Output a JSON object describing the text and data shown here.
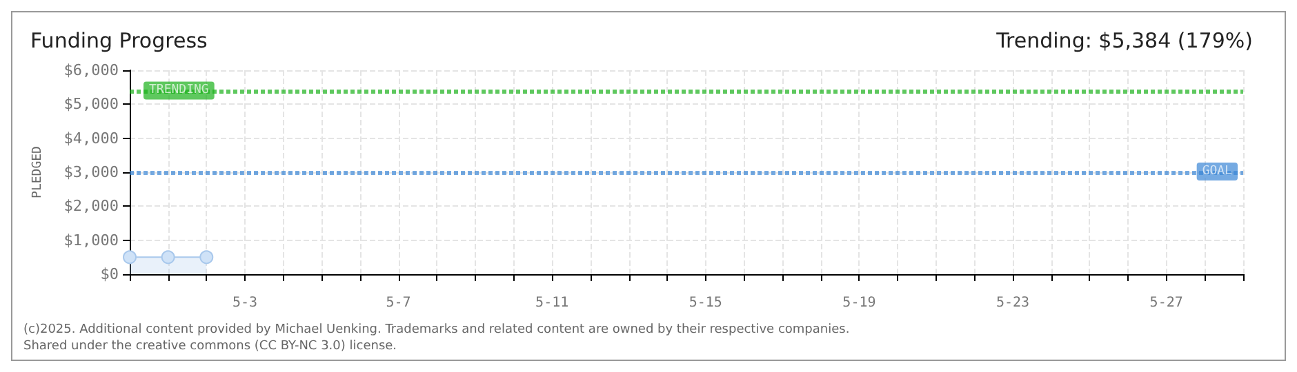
{
  "chart_data": {
    "type": "area",
    "title": "Funding Progress",
    "subtitle": "Trending: $5,384 (179%)",
    "ylabel": "PLEDGED",
    "categories": [
      null,
      null,
      null,
      "5-3",
      null,
      null,
      null,
      "5-7",
      null,
      null,
      null,
      "5-11",
      null,
      null,
      null,
      "5-15",
      null,
      null,
      null,
      "5-19",
      null,
      null,
      null,
      "5-23",
      null,
      null,
      null,
      "5-27",
      null,
      null
    ],
    "series": [
      {
        "color": "#a8c8ec",
        "values": [
          500,
          500,
          500,
          null,
          null,
          null,
          null,
          null,
          null,
          null,
          null,
          null,
          null,
          null,
          null,
          null,
          null,
          null,
          null,
          null,
          null,
          null,
          null,
          null,
          null,
          null,
          null,
          null,
          null,
          null
        ]
      }
    ],
    "marker": "circle",
    "grid": true,
    "ylim": [
      0,
      6000
    ],
    "yticks": [
      {
        "value": 0,
        "label": "$0"
      },
      {
        "value": 1000,
        "label": "$1,000"
      },
      {
        "value": 2000,
        "label": "$2,000"
      },
      {
        "value": 3000,
        "label": "$3,000"
      },
      {
        "value": 4000,
        "label": "$4,000"
      },
      {
        "value": 5000,
        "label": "$5,000"
      },
      {
        "value": 6000,
        "label": "$6,000"
      }
    ],
    "ref_lines": [
      {
        "axis": "y",
        "value": 5384,
        "label": "TRENDING",
        "color": "#1ab11a",
        "line_style": "dotted"
      },
      {
        "axis": "y",
        "value": 3000,
        "label": "GOAL",
        "color": "#3a86d6",
        "line_style": "dotted"
      }
    ],
    "annotations": [
      "(c)2025. Additional content provided by Michael Uenking. Trademarks and related content are owned by their respective companies.",
      "Shared under the creative commons (CC BY-NC 3.0) license."
    ]
  }
}
